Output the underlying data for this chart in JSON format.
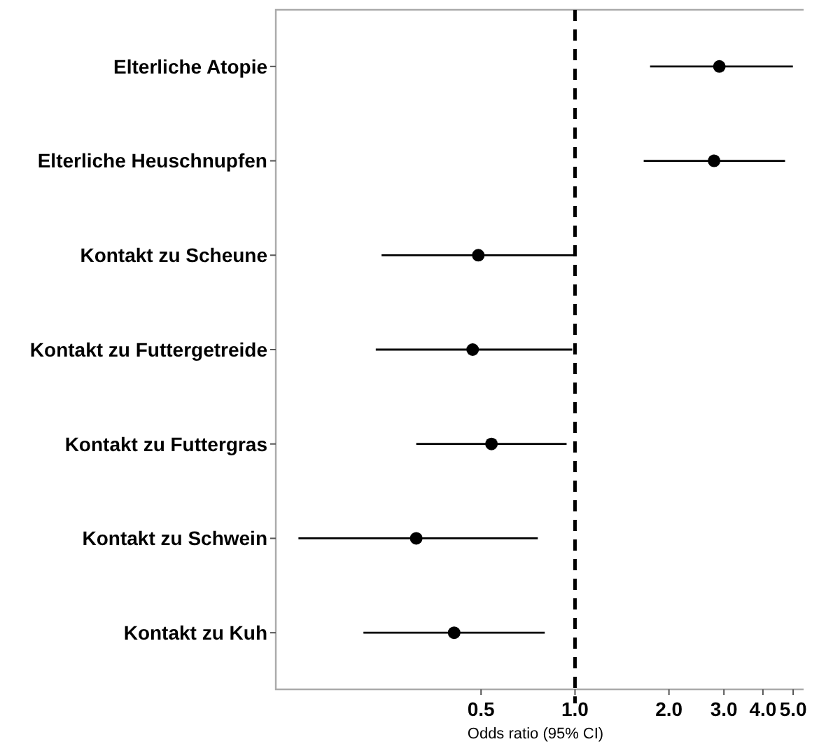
{
  "chart_data": {
    "type": "scatter",
    "orientation": "horizontal",
    "xlabel": "Odds ratio (95% CI)",
    "categories": [
      "Elterliche Atopie",
      "Elterliche Heuschnupfen",
      "Kontakt zu Scheune",
      "Kontakt zu Futtergetreide",
      "Kontakt zu Futtergras",
      "Kontakt zu Schwein",
      "Kontakt zu Kuh"
    ],
    "values": [
      2.9,
      2.79,
      0.49,
      0.47,
      0.54,
      0.31,
      0.41
    ],
    "errors": [
      [
        1.74,
        4.99
      ],
      [
        1.66,
        4.71
      ],
      [
        0.24,
        1.0
      ],
      [
        0.23,
        0.98
      ],
      [
        0.31,
        0.94
      ],
      [
        0.13,
        0.76
      ],
      [
        0.21,
        0.8
      ]
    ],
    "color": "#000000",
    "marker": "circle",
    "log": "x",
    "grid": false,
    "xlim": [
      0.11,
      5.4
    ],
    "xticks": [
      {
        "value": 0.5,
        "label": "0.5"
      },
      {
        "value": 1,
        "label": "1.0"
      },
      {
        "value": 2,
        "label": "2.0"
      },
      {
        "value": 3,
        "label": "3.0"
      },
      {
        "value": 4,
        "label": "4.0"
      },
      {
        "value": 5,
        "label": "5.0"
      }
    ],
    "ref_lines": [
      {
        "axis": "x",
        "value": 1,
        "color": "#000000",
        "line_style": "dashed"
      }
    ]
  }
}
